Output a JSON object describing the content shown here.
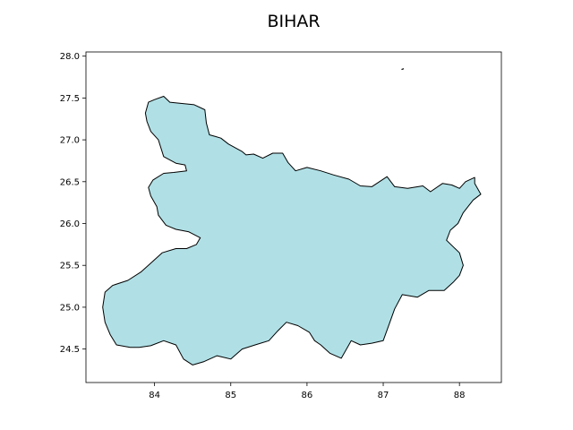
{
  "chart_data": {
    "type": "map",
    "title": "BIHAR",
    "xlabel": "",
    "ylabel": "",
    "xlim": [
      83.1,
      88.55
    ],
    "ylim": [
      24.1,
      28.05
    ],
    "xticks": [
      84,
      85,
      86,
      87,
      88
    ],
    "xtick_labels": [
      "84",
      "85",
      "86",
      "87",
      "88"
    ],
    "yticks": [
      24.5,
      25.0,
      25.5,
      26.0,
      26.5,
      27.0,
      27.5,
      28.0
    ],
    "ytick_labels": [
      "24.5",
      "25.0",
      "25.5",
      "26.0",
      "26.5",
      "27.0",
      "27.5",
      "28.0"
    ],
    "grid": false,
    "region": {
      "name": "BIHAR",
      "fill": "#b0e0e6",
      "edge": "#000000",
      "outline_lonlat": [
        [
          84.12,
          27.52
        ],
        [
          84.2,
          27.45
        ],
        [
          84.3,
          27.44
        ],
        [
          84.52,
          27.42
        ],
        [
          84.66,
          27.36
        ],
        [
          84.68,
          27.2
        ],
        [
          84.72,
          27.06
        ],
        [
          84.8,
          27.04
        ],
        [
          84.87,
          27.02
        ],
        [
          84.97,
          26.95
        ],
        [
          85.15,
          26.86
        ],
        [
          85.2,
          26.82
        ],
        [
          85.3,
          26.83
        ],
        [
          85.42,
          26.78
        ],
        [
          85.55,
          26.84
        ],
        [
          85.68,
          26.84
        ],
        [
          85.75,
          26.73
        ],
        [
          85.85,
          26.63
        ],
        [
          86.0,
          26.67
        ],
        [
          86.18,
          26.63
        ],
        [
          86.35,
          26.58
        ],
        [
          86.55,
          26.53
        ],
        [
          86.7,
          26.45
        ],
        [
          86.85,
          26.44
        ],
        [
          87.05,
          26.56
        ],
        [
          87.15,
          26.44
        ],
        [
          87.32,
          26.42
        ],
        [
          87.52,
          26.45
        ],
        [
          87.62,
          26.38
        ],
        [
          87.78,
          26.48
        ],
        [
          87.9,
          26.46
        ],
        [
          88.0,
          26.42
        ],
        [
          88.08,
          26.5
        ],
        [
          88.2,
          26.55
        ],
        [
          88.2,
          26.48
        ],
        [
          88.28,
          26.35
        ],
        [
          88.18,
          26.28
        ],
        [
          88.05,
          26.13
        ],
        [
          87.98,
          26.0
        ],
        [
          87.88,
          25.92
        ],
        [
          87.83,
          25.8
        ],
        [
          88.0,
          25.65
        ],
        [
          88.05,
          25.5
        ],
        [
          88.0,
          25.38
        ],
        [
          87.92,
          25.3
        ],
        [
          87.8,
          25.2
        ],
        [
          87.6,
          25.2
        ],
        [
          87.45,
          25.12
        ],
        [
          87.25,
          25.15
        ],
        [
          87.15,
          24.98
        ],
        [
          87.08,
          24.8
        ],
        [
          87.0,
          24.6
        ],
        [
          86.85,
          24.57
        ],
        [
          86.7,
          24.55
        ],
        [
          86.58,
          24.6
        ],
        [
          86.45,
          24.39
        ],
        [
          86.3,
          24.45
        ],
        [
          86.18,
          24.55
        ],
        [
          86.1,
          24.6
        ],
        [
          86.03,
          24.7
        ],
        [
          85.88,
          24.78
        ],
        [
          85.73,
          24.82
        ],
        [
          85.62,
          24.72
        ],
        [
          85.5,
          24.6
        ],
        [
          85.32,
          24.55
        ],
        [
          85.15,
          24.5
        ],
        [
          85.0,
          24.38
        ],
        [
          84.82,
          24.42
        ],
        [
          84.65,
          24.35
        ],
        [
          84.5,
          24.31
        ],
        [
          84.38,
          24.38
        ],
        [
          84.28,
          24.55
        ],
        [
          84.12,
          24.6
        ],
        [
          83.95,
          24.54
        ],
        [
          83.8,
          24.52
        ],
        [
          83.68,
          24.52
        ],
        [
          83.5,
          24.55
        ],
        [
          83.42,
          24.67
        ],
        [
          83.35,
          24.82
        ],
        [
          83.32,
          25.0
        ],
        [
          83.35,
          25.18
        ],
        [
          83.45,
          25.26
        ],
        [
          83.65,
          25.32
        ],
        [
          83.82,
          25.42
        ],
        [
          83.98,
          25.55
        ],
        [
          84.1,
          25.65
        ],
        [
          84.28,
          25.7
        ],
        [
          84.42,
          25.7
        ],
        [
          84.55,
          25.75
        ],
        [
          84.6,
          25.83
        ],
        [
          84.45,
          25.9
        ],
        [
          84.28,
          25.93
        ],
        [
          84.15,
          25.98
        ],
        [
          84.05,
          26.1
        ],
        [
          84.03,
          26.2
        ],
        [
          83.95,
          26.33
        ],
        [
          83.92,
          26.43
        ],
        [
          83.98,
          26.52
        ],
        [
          84.12,
          26.6
        ],
        [
          84.25,
          26.61
        ],
        [
          84.42,
          26.63
        ],
        [
          84.4,
          26.7
        ],
        [
          84.28,
          26.72
        ],
        [
          84.12,
          26.8
        ],
        [
          84.05,
          27.0
        ],
        [
          83.95,
          27.1
        ],
        [
          83.9,
          27.22
        ],
        [
          83.88,
          27.32
        ],
        [
          83.92,
          27.45
        ],
        [
          84.0,
          27.48
        ]
      ],
      "islet_lonlat": [
        [
          87.24,
          27.84
        ],
        [
          87.27,
          27.85
        ]
      ]
    }
  }
}
